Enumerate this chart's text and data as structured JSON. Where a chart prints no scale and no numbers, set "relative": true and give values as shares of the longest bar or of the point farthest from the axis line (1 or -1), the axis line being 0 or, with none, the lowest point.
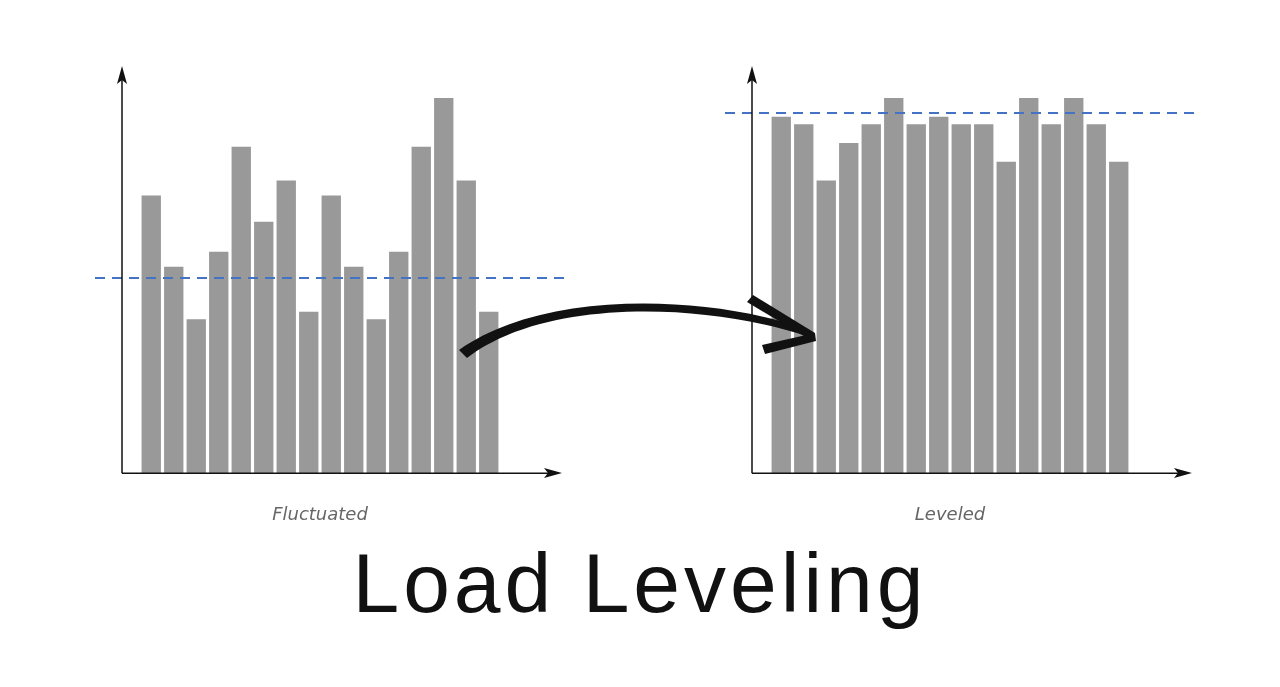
{
  "chart_data": [
    {
      "type": "bar",
      "title": "Load Leveling",
      "xlabel": "Fluctuated",
      "relative": true,
      "color": "#999999",
      "categories": [
        null,
        null,
        null,
        null,
        null,
        null,
        null,
        null,
        null,
        null,
        null,
        null,
        null,
        null,
        null,
        null
      ],
      "values": [
        0.74,
        0.55,
        0.41,
        0.59,
        0.87,
        0.67,
        0.78,
        0.43,
        0.74,
        0.55,
        0.41,
        0.59,
        0.87,
        1,
        0.78,
        0.43
      ],
      "ref_lines": [
        {
          "axis": "y",
          "value": 0.52,
          "color": "#4472c4",
          "line_style": "dashed"
        }
      ]
    },
    {
      "type": "bar",
      "xlabel": "Leveled",
      "relative": true,
      "color": "#999999",
      "categories": [
        null,
        null,
        null,
        null,
        null,
        null,
        null,
        null,
        null,
        null,
        null,
        null,
        null,
        null,
        null,
        null
      ],
      "values": [
        0.95,
        0.93,
        0.78,
        0.88,
        0.93,
        1,
        0.93,
        0.95,
        0.93,
        0.93,
        0.83,
        1,
        0.93,
        1,
        0.93,
        0.83
      ],
      "ref_lines": [
        {
          "axis": "y",
          "value": 0.96,
          "color": "#4472c4",
          "line_style": "dashed"
        }
      ]
    }
  ]
}
